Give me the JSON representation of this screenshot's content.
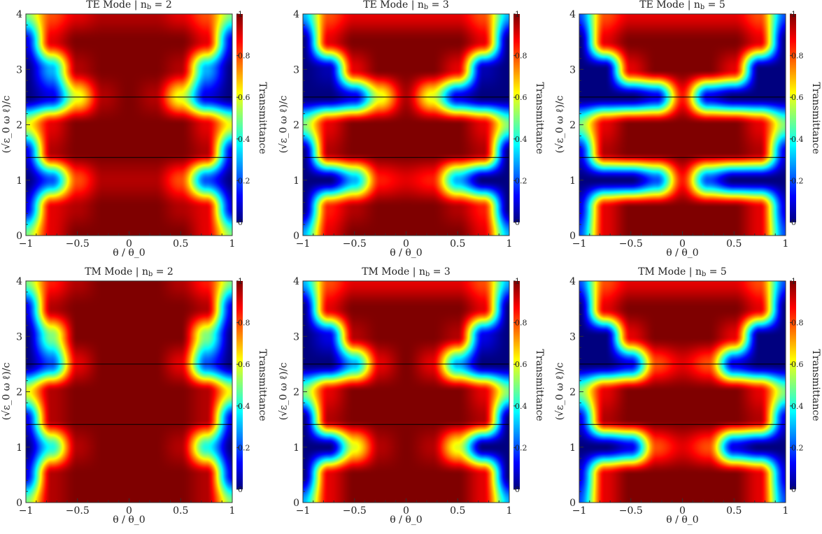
{
  "chart_data": [
    {
      "type": "heatmap",
      "title": "TE Mode | n_b = 2",
      "xlabel": "θ / θ_0",
      "ylabel": "(√ε_0 ω ℓ)/c",
      "colorbar_label": "Transmittance",
      "colormap": "jet",
      "clim": [
        0,
        1
      ],
      "xlim": [
        -1,
        1
      ],
      "ylim": [
        0,
        4
      ],
      "xticks": [
        "−1",
        "−0.5",
        "0",
        "0.5",
        "1"
      ],
      "yticks": [
        "0",
        "1",
        "2",
        "3",
        "4"
      ],
      "cbar_ticks": [
        "0",
        "0.2",
        "0.4",
        "0.6",
        "0.8",
        "1"
      ],
      "reference_lines_y": [
        1.41,
        2.5
      ],
      "x": [
        -1,
        -0.75,
        -0.5,
        -0.25,
        0,
        0.25,
        0.5,
        0.75,
        1
      ],
      "y": [
        0,
        0.5,
        1,
        1.5,
        2,
        2.5,
        3,
        3.5,
        4
      ],
      "z": [
        [
          0.5,
          0.9,
          1,
          1,
          1,
          1,
          1,
          0.9,
          0.5
        ],
        [
          0.1,
          0.9,
          0.95,
          1,
          1,
          1,
          0.95,
          0.9,
          0.1
        ],
        [
          0,
          0.2,
          0.8,
          0.95,
          0.95,
          0.95,
          0.8,
          0.2,
          0
        ],
        [
          0.1,
          0.95,
          1,
          1,
          1,
          1,
          1,
          0.95,
          0.1
        ],
        [
          0.6,
          0.9,
          1,
          1,
          1,
          1,
          1,
          0.9,
          0.6
        ],
        [
          0,
          0.1,
          0.6,
          0.95,
          1,
          0.95,
          0.6,
          0.1,
          0
        ],
        [
          0,
          0.3,
          0.95,
          1,
          1,
          1,
          0.95,
          0.3,
          0
        ],
        [
          0.1,
          0.9,
          1,
          1,
          1,
          1,
          1,
          0.9,
          0.1
        ],
        [
          0.5,
          0.8,
          0.9,
          0.95,
          0.95,
          0.95,
          0.9,
          0.8,
          0.5
        ]
      ]
    },
    {
      "type": "heatmap",
      "title": "TE Mode | n_b = 3",
      "xlabel": "θ / θ_0",
      "ylabel": "(√ε_0 ω ℓ)/c",
      "colorbar_label": "Transmittance",
      "colormap": "jet",
      "clim": [
        0,
        1
      ],
      "xlim": [
        -1,
        1
      ],
      "ylim": [
        0,
        4
      ],
      "xticks": [
        "−1",
        "−0.5",
        "0",
        "0.5",
        "1"
      ],
      "yticks": [
        "0",
        "1",
        "2",
        "3",
        "4"
      ],
      "cbar_ticks": [
        "0",
        "0.2",
        "0.4",
        "0.6",
        "0.8",
        "1"
      ],
      "reference_lines_y": [
        1.41,
        2.5
      ],
      "x": [
        -1,
        -0.75,
        -0.5,
        -0.25,
        0,
        0.25,
        0.5,
        0.75,
        1
      ],
      "y": [
        0,
        0.5,
        1,
        1.5,
        2,
        2.5,
        3,
        3.5,
        4
      ],
      "z": [
        [
          0.3,
          0.9,
          1,
          1,
          1,
          1,
          1,
          0.9,
          0.3
        ],
        [
          0,
          0.85,
          0.95,
          1,
          1,
          1,
          0.95,
          0.85,
          0
        ],
        [
          0,
          0,
          0.3,
          0.85,
          0.9,
          0.85,
          0.3,
          0,
          0
        ],
        [
          0,
          0.95,
          1,
          1,
          1,
          1,
          1,
          0.95,
          0
        ],
        [
          0.5,
          0.9,
          1,
          1,
          1,
          1,
          1,
          0.9,
          0.5
        ],
        [
          0,
          0,
          0.1,
          0.6,
          0.95,
          0.6,
          0.1,
          0,
          0
        ],
        [
          0,
          0.05,
          0.9,
          1,
          1,
          1,
          0.9,
          0.05,
          0
        ],
        [
          0,
          0.9,
          1,
          1,
          1,
          1,
          1,
          0.9,
          0
        ],
        [
          0.3,
          0.8,
          0.9,
          0.9,
          0.9,
          0.9,
          0.9,
          0.8,
          0.3
        ]
      ]
    },
    {
      "type": "heatmap",
      "title": "TE Mode | n_b = 5",
      "xlabel": "θ / θ_0",
      "ylabel": "(√ε_0 ω ℓ)/c",
      "colorbar_label": "Transmittance",
      "colormap": "jet",
      "clim": [
        0,
        1
      ],
      "xlim": [
        -1,
        1
      ],
      "ylim": [
        0,
        4
      ],
      "xticks": [
        "−1",
        "−0.5",
        "0",
        "0.5",
        "1"
      ],
      "yticks": [
        "0",
        "1",
        "2",
        "3",
        "4"
      ],
      "cbar_ticks": [
        "0",
        "0.2",
        "0.4",
        "0.6",
        "0.8",
        "1"
      ],
      "reference_lines_y": [
        1.41,
        2.5
      ],
      "x": [
        -1,
        -0.75,
        -0.5,
        -0.25,
        0,
        0.25,
        0.5,
        0.75,
        1
      ],
      "y": [
        0,
        0.5,
        1,
        1.5,
        2,
        2.5,
        3,
        3.5,
        4
      ],
      "z": [
        [
          0.2,
          0.9,
          1,
          1,
          1,
          1,
          1,
          0.9,
          0.2
        ],
        [
          0.1,
          0.9,
          1,
          1,
          1,
          1,
          1,
          0.9,
          0.1
        ],
        [
          0,
          0,
          0,
          0.2,
          0.85,
          0.2,
          0,
          0,
          0
        ],
        [
          0.1,
          0.95,
          1,
          1,
          1,
          1,
          1,
          0.95,
          0.1
        ],
        [
          0.5,
          0.9,
          1,
          1,
          1,
          1,
          1,
          0.9,
          0.5
        ],
        [
          0,
          0,
          0,
          0.1,
          0.85,
          0.1,
          0,
          0,
          0
        ],
        [
          0,
          0,
          0.9,
          1,
          1,
          1,
          0.9,
          0,
          0
        ],
        [
          0,
          0.9,
          1,
          1,
          1,
          1,
          1,
          0.9,
          0
        ],
        [
          0.2,
          0.8,
          0.9,
          0.9,
          0.9,
          0.9,
          0.9,
          0.8,
          0.2
        ]
      ]
    },
    {
      "type": "heatmap",
      "title": "TM Mode | n_b = 2",
      "xlabel": "θ / θ_0",
      "ylabel": "(√ε_0 ω ℓ)/c",
      "colorbar_label": "Transmittance",
      "colormap": "jet",
      "clim": [
        0,
        1
      ],
      "xlim": [
        -1,
        1
      ],
      "ylim": [
        0,
        4
      ],
      "xticks": [
        "−1",
        "−0.5",
        "0",
        "0.5",
        "1"
      ],
      "yticks": [
        "0",
        "1",
        "2",
        "3",
        "4"
      ],
      "cbar_ticks": [
        "0",
        "0.2",
        "0.4",
        "0.6",
        "0.8",
        "1"
      ],
      "reference_lines_y": [
        1.41,
        2.5
      ],
      "x": [
        -1,
        -0.75,
        -0.5,
        -0.25,
        0,
        0.25,
        0.5,
        0.75,
        1
      ],
      "y": [
        0,
        0.5,
        1,
        1.5,
        2,
        2.5,
        3,
        3.5,
        4
      ],
      "z": [
        [
          0.5,
          0.95,
          1,
          1,
          1,
          1,
          1,
          0.95,
          0.5
        ],
        [
          0.1,
          0.95,
          1,
          1,
          1,
          1,
          1,
          0.95,
          0.1
        ],
        [
          0,
          0.4,
          0.95,
          1,
          1,
          1,
          0.95,
          0.4,
          0
        ],
        [
          0.1,
          0.95,
          1,
          1,
          1,
          1,
          1,
          0.95,
          0.1
        ],
        [
          0.6,
          0.95,
          1,
          1,
          1,
          1,
          1,
          0.95,
          0.6
        ],
        [
          0,
          0.2,
          0.9,
          1,
          1,
          1,
          0.9,
          0.2,
          0
        ],
        [
          0,
          0.5,
          1,
          1,
          1,
          1,
          1,
          0.5,
          0
        ],
        [
          0.1,
          0.95,
          1,
          1,
          1,
          1,
          1,
          0.95,
          0.1
        ],
        [
          0.5,
          0.85,
          0.95,
          1,
          1,
          1,
          0.95,
          0.85,
          0.5
        ]
      ]
    },
    {
      "type": "heatmap",
      "title": "TM Mode | n_b = 3",
      "xlabel": "θ / θ_0",
      "ylabel": "(√ε_0 ω ℓ)/c",
      "colorbar_label": "Transmittance",
      "colormap": "jet",
      "clim": [
        0,
        1
      ],
      "xlim": [
        -1,
        1
      ],
      "ylim": [
        0,
        4
      ],
      "xticks": [
        "−1",
        "−0.5",
        "0",
        "0.5",
        "1"
      ],
      "yticks": [
        "0",
        "1",
        "2",
        "3",
        "4"
      ],
      "cbar_ticks": [
        "0",
        "0.2",
        "0.4",
        "0.6",
        "0.8",
        "1"
      ],
      "reference_lines_y": [
        1.41,
        2.5
      ],
      "x": [
        -1,
        -0.75,
        -0.5,
        -0.25,
        0,
        0.25,
        0.5,
        0.75,
        1
      ],
      "y": [
        0,
        0.5,
        1,
        1.5,
        2,
        2.5,
        3,
        3.5,
        4
      ],
      "z": [
        [
          0.3,
          0.9,
          1,
          1,
          1,
          1,
          1,
          0.9,
          0.3
        ],
        [
          0,
          0.9,
          1,
          1,
          1,
          1,
          1,
          0.9,
          0
        ],
        [
          0,
          0,
          0.6,
          0.95,
          1,
          0.95,
          0.6,
          0,
          0
        ],
        [
          0,
          0.95,
          1,
          1,
          1,
          1,
          1,
          0.95,
          0
        ],
        [
          0.5,
          0.9,
          1,
          1,
          1,
          1,
          1,
          0.9,
          0.5
        ],
        [
          0,
          0,
          0.3,
          0.9,
          1,
          0.9,
          0.3,
          0,
          0
        ],
        [
          0,
          0.1,
          0.95,
          1,
          1,
          1,
          0.95,
          0.1,
          0
        ],
        [
          0,
          0.9,
          1,
          1,
          1,
          1,
          1,
          0.9,
          0
        ],
        [
          0.3,
          0.8,
          0.9,
          0.9,
          0.9,
          0.9,
          0.9,
          0.8,
          0.3
        ]
      ]
    },
    {
      "type": "heatmap",
      "title": "TM Mode | n_b = 5",
      "xlabel": "θ / θ_0",
      "ylabel": "(√ε_0 ω ℓ)/c",
      "colorbar_label": "Transmittance",
      "colormap": "jet",
      "clim": [
        0,
        1
      ],
      "xlim": [
        -1,
        1
      ],
      "ylim": [
        0,
        4
      ],
      "xticks": [
        "−1",
        "−0.5",
        "0",
        "0.5",
        "1"
      ],
      "yticks": [
        "0",
        "1",
        "2",
        "3",
        "4"
      ],
      "cbar_ticks": [
        "0",
        "0.2",
        "0.4",
        "0.6",
        "0.8",
        "1"
      ],
      "reference_lines_y": [
        1.41,
        2.5
      ],
      "x": [
        -1,
        -0.75,
        -0.5,
        -0.25,
        0,
        0.25,
        0.5,
        0.75,
        1
      ],
      "y": [
        0,
        0.5,
        1,
        1.5,
        2,
        2.5,
        3,
        3.5,
        4
      ],
      "z": [
        [
          0.2,
          0.9,
          1,
          1,
          1,
          1,
          1,
          0.9,
          0.2
        ],
        [
          0.1,
          0.9,
          1,
          1,
          1,
          1,
          1,
          0.9,
          0.1
        ],
        [
          0,
          0,
          0.1,
          0.8,
          0.9,
          0.8,
          0.1,
          0,
          0
        ],
        [
          0.1,
          0.95,
          1,
          1,
          1,
          1,
          1,
          0.95,
          0.1
        ],
        [
          0.5,
          0.9,
          1,
          1,
          1,
          1,
          1,
          0.9,
          0.5
        ],
        [
          0,
          0,
          0.1,
          0.8,
          0.9,
          0.8,
          0.1,
          0,
          0
        ],
        [
          0,
          0,
          0.9,
          1,
          1,
          1,
          0.9,
          0,
          0
        ],
        [
          0,
          0.9,
          1,
          1,
          1,
          1,
          1,
          0.9,
          0
        ],
        [
          0.2,
          0.8,
          0.9,
          0.9,
          0.9,
          0.9,
          0.9,
          0.8,
          0.2
        ]
      ]
    }
  ]
}
